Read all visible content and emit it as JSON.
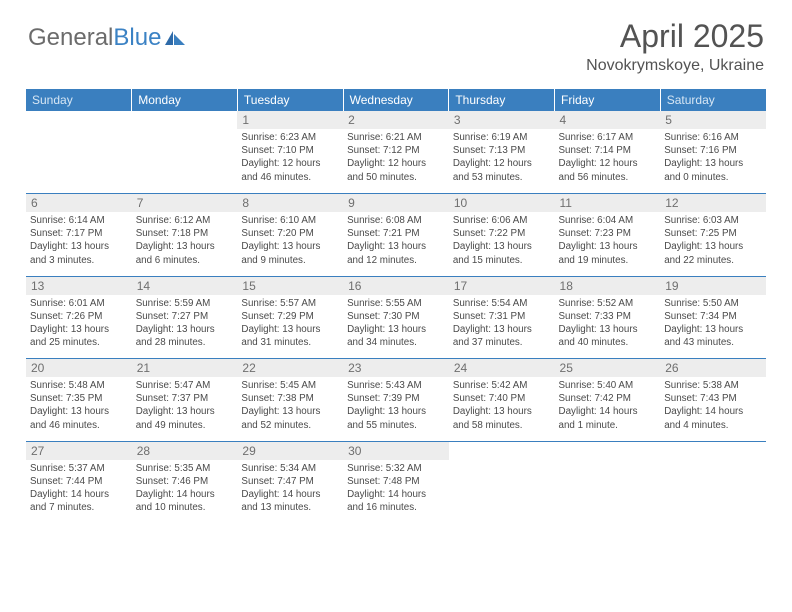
{
  "logo": {
    "text_gray": "General",
    "text_blue": "Blue"
  },
  "title": "April 2025",
  "location": "Novokrymskoye, Ukraine",
  "weekdays": [
    "Sunday",
    "Monday",
    "Tuesday",
    "Wednesday",
    "Thursday",
    "Friday",
    "Saturday"
  ],
  "header_color": "#3a7fbf",
  "daynum_bg": "#ededed",
  "text_color": "#4a4a4a",
  "weeks": [
    [
      null,
      null,
      {
        "n": "1",
        "sr": "Sunrise: 6:23 AM",
        "ss": "Sunset: 7:10 PM",
        "dl": "Daylight: 12 hours and 46 minutes."
      },
      {
        "n": "2",
        "sr": "Sunrise: 6:21 AM",
        "ss": "Sunset: 7:12 PM",
        "dl": "Daylight: 12 hours and 50 minutes."
      },
      {
        "n": "3",
        "sr": "Sunrise: 6:19 AM",
        "ss": "Sunset: 7:13 PM",
        "dl": "Daylight: 12 hours and 53 minutes."
      },
      {
        "n": "4",
        "sr": "Sunrise: 6:17 AM",
        "ss": "Sunset: 7:14 PM",
        "dl": "Daylight: 12 hours and 56 minutes."
      },
      {
        "n": "5",
        "sr": "Sunrise: 6:16 AM",
        "ss": "Sunset: 7:16 PM",
        "dl": "Daylight: 13 hours and 0 minutes."
      }
    ],
    [
      {
        "n": "6",
        "sr": "Sunrise: 6:14 AM",
        "ss": "Sunset: 7:17 PM",
        "dl": "Daylight: 13 hours and 3 minutes."
      },
      {
        "n": "7",
        "sr": "Sunrise: 6:12 AM",
        "ss": "Sunset: 7:18 PM",
        "dl": "Daylight: 13 hours and 6 minutes."
      },
      {
        "n": "8",
        "sr": "Sunrise: 6:10 AM",
        "ss": "Sunset: 7:20 PM",
        "dl": "Daylight: 13 hours and 9 minutes."
      },
      {
        "n": "9",
        "sr": "Sunrise: 6:08 AM",
        "ss": "Sunset: 7:21 PM",
        "dl": "Daylight: 13 hours and 12 minutes."
      },
      {
        "n": "10",
        "sr": "Sunrise: 6:06 AM",
        "ss": "Sunset: 7:22 PM",
        "dl": "Daylight: 13 hours and 15 minutes."
      },
      {
        "n": "11",
        "sr": "Sunrise: 6:04 AM",
        "ss": "Sunset: 7:23 PM",
        "dl": "Daylight: 13 hours and 19 minutes."
      },
      {
        "n": "12",
        "sr": "Sunrise: 6:03 AM",
        "ss": "Sunset: 7:25 PM",
        "dl": "Daylight: 13 hours and 22 minutes."
      }
    ],
    [
      {
        "n": "13",
        "sr": "Sunrise: 6:01 AM",
        "ss": "Sunset: 7:26 PM",
        "dl": "Daylight: 13 hours and 25 minutes."
      },
      {
        "n": "14",
        "sr": "Sunrise: 5:59 AM",
        "ss": "Sunset: 7:27 PM",
        "dl": "Daylight: 13 hours and 28 minutes."
      },
      {
        "n": "15",
        "sr": "Sunrise: 5:57 AM",
        "ss": "Sunset: 7:29 PM",
        "dl": "Daylight: 13 hours and 31 minutes."
      },
      {
        "n": "16",
        "sr": "Sunrise: 5:55 AM",
        "ss": "Sunset: 7:30 PM",
        "dl": "Daylight: 13 hours and 34 minutes."
      },
      {
        "n": "17",
        "sr": "Sunrise: 5:54 AM",
        "ss": "Sunset: 7:31 PM",
        "dl": "Daylight: 13 hours and 37 minutes."
      },
      {
        "n": "18",
        "sr": "Sunrise: 5:52 AM",
        "ss": "Sunset: 7:33 PM",
        "dl": "Daylight: 13 hours and 40 minutes."
      },
      {
        "n": "19",
        "sr": "Sunrise: 5:50 AM",
        "ss": "Sunset: 7:34 PM",
        "dl": "Daylight: 13 hours and 43 minutes."
      }
    ],
    [
      {
        "n": "20",
        "sr": "Sunrise: 5:48 AM",
        "ss": "Sunset: 7:35 PM",
        "dl": "Daylight: 13 hours and 46 minutes."
      },
      {
        "n": "21",
        "sr": "Sunrise: 5:47 AM",
        "ss": "Sunset: 7:37 PM",
        "dl": "Daylight: 13 hours and 49 minutes."
      },
      {
        "n": "22",
        "sr": "Sunrise: 5:45 AM",
        "ss": "Sunset: 7:38 PM",
        "dl": "Daylight: 13 hours and 52 minutes."
      },
      {
        "n": "23",
        "sr": "Sunrise: 5:43 AM",
        "ss": "Sunset: 7:39 PM",
        "dl": "Daylight: 13 hours and 55 minutes."
      },
      {
        "n": "24",
        "sr": "Sunrise: 5:42 AM",
        "ss": "Sunset: 7:40 PM",
        "dl": "Daylight: 13 hours and 58 minutes."
      },
      {
        "n": "25",
        "sr": "Sunrise: 5:40 AM",
        "ss": "Sunset: 7:42 PM",
        "dl": "Daylight: 14 hours and 1 minute."
      },
      {
        "n": "26",
        "sr": "Sunrise: 5:38 AM",
        "ss": "Sunset: 7:43 PM",
        "dl": "Daylight: 14 hours and 4 minutes."
      }
    ],
    [
      {
        "n": "27",
        "sr": "Sunrise: 5:37 AM",
        "ss": "Sunset: 7:44 PM",
        "dl": "Daylight: 14 hours and 7 minutes."
      },
      {
        "n": "28",
        "sr": "Sunrise: 5:35 AM",
        "ss": "Sunset: 7:46 PM",
        "dl": "Daylight: 14 hours and 10 minutes."
      },
      {
        "n": "29",
        "sr": "Sunrise: 5:34 AM",
        "ss": "Sunset: 7:47 PM",
        "dl": "Daylight: 14 hours and 13 minutes."
      },
      {
        "n": "30",
        "sr": "Sunrise: 5:32 AM",
        "ss": "Sunset: 7:48 PM",
        "dl": "Daylight: 14 hours and 16 minutes."
      },
      null,
      null,
      null
    ]
  ]
}
